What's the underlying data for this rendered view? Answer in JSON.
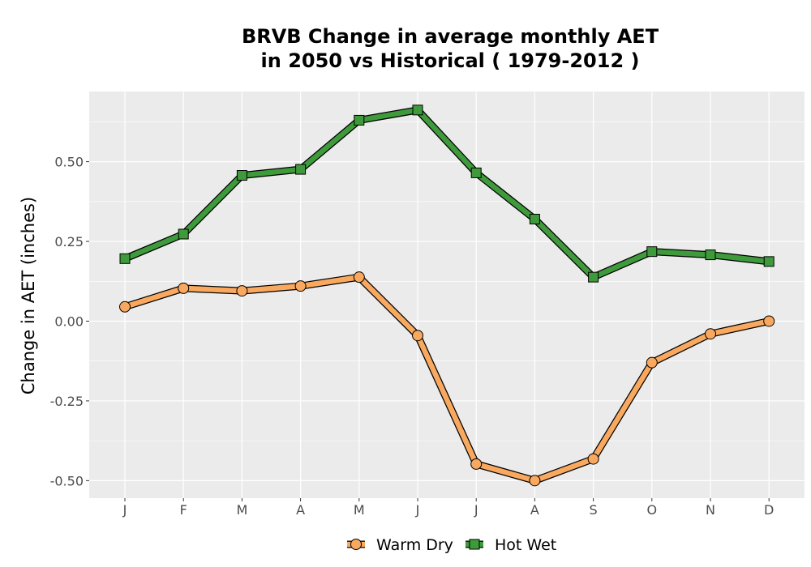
{
  "chart_data": {
    "type": "line",
    "title_line1": "BRVB  Change in average monthly AET",
    "title_line2": "in 2050 vs Historical ( 1979-2012 )",
    "xlabel": "",
    "ylabel": "Change in AET (inches)",
    "categories": [
      "J",
      "F",
      "M",
      "A",
      "M",
      "J",
      "J",
      "A",
      "S",
      "O",
      "N",
      "D"
    ],
    "y_ticks": [
      -0.5,
      -0.25,
      0.0,
      0.25,
      0.5
    ],
    "y_tick_labels": [
      "-0.50",
      "-0.25",
      "0.00",
      "0.25",
      "0.50"
    ],
    "ylim": [
      -0.555,
      0.72
    ],
    "grid": true,
    "legend_position": "bottom",
    "series": [
      {
        "name": "Warm Dry",
        "color": "#F9A95F",
        "marker": "circle",
        "values": [
          0.045,
          0.103,
          0.095,
          0.11,
          0.138,
          -0.045,
          -0.448,
          -0.5,
          -0.432,
          -0.13,
          -0.04,
          0.0
        ]
      },
      {
        "name": "Hot Wet",
        "color": "#3E9A3A",
        "marker": "square",
        "values": [
          0.196,
          0.273,
          0.457,
          0.476,
          0.63,
          0.662,
          0.465,
          0.32,
          0.138,
          0.218,
          0.208,
          0.187
        ]
      }
    ]
  }
}
